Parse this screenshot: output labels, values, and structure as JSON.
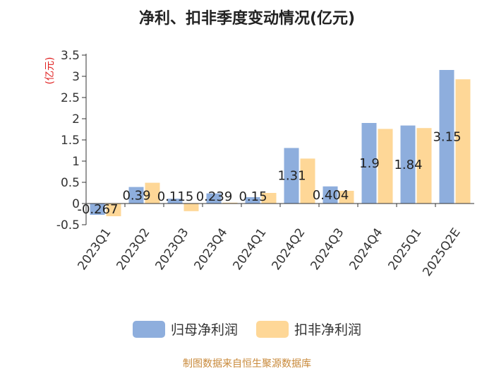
{
  "title": "净利、扣非季度变动情况(亿元)",
  "source_note": "制图数据来自恒生聚源数据库",
  "colors": {
    "series1": "#8eaedd",
    "series2": "#fed797",
    "ylabel": "#e02020",
    "axis": "#333333",
    "label": "#222222"
  },
  "chart_data": {
    "type": "bar",
    "title": "净利、扣非季度变动情况(亿元)",
    "ylabel": "(亿元)",
    "xlabel": "",
    "ylim": [
      -0.5,
      3.5
    ],
    "yticks": [
      -0.5,
      0,
      0.5,
      1,
      1.5,
      2,
      2.5,
      3,
      3.5
    ],
    "ytick_labels": [
      "-0.5",
      "0",
      "0.5",
      "1",
      "1.5",
      "2",
      "2.5",
      "3",
      "3.5"
    ],
    "grid": false,
    "legend_position": "bottom",
    "categories": [
      "2023Q1",
      "2023Q2",
      "2023Q3",
      "2023Q4",
      "2024Q1",
      "2024Q2",
      "2024Q3",
      "2024Q4",
      "2025Q1",
      "2025Q2E"
    ],
    "series": [
      {
        "name": "归母净利润",
        "color": "#8eaedd",
        "values": [
          -0.267,
          0.39,
          0.115,
          0.239,
          0.15,
          1.31,
          0.404,
          1.9,
          1.84,
          3.15
        ],
        "labels": [
          "-0.267",
          "0.39",
          "0.115",
          "0.239",
          "0.15",
          "1.31",
          "0.404",
          "1.9",
          "1.84",
          "3.15"
        ]
      },
      {
        "name": "扣非净利润",
        "color": "#fed797",
        "values": [
          -0.3,
          0.49,
          -0.18,
          0.02,
          0.25,
          1.06,
          0.3,
          1.76,
          1.78,
          2.93
        ]
      }
    ]
  }
}
